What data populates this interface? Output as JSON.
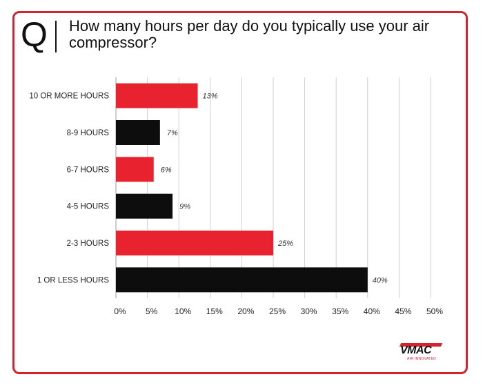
{
  "header": {
    "q_letter": "Q",
    "question": "How many hours per day do you typically use your air compressor?"
  },
  "colors": {
    "red": "#e8232f",
    "black": "#0d0d0d",
    "border": "#d6232f",
    "grid": "#cfcfcf"
  },
  "chart_data": {
    "type": "bar",
    "orientation": "horizontal",
    "title": "How many hours per day do you typically use your air compressor?",
    "xlabel": "",
    "ylabel": "",
    "categories": [
      "10 OR MORE HOURS",
      "8-9 HOURS",
      "6-7 HOURS",
      "4-5 HOURS",
      "2-3 HOURS",
      "1 OR LESS HOURS"
    ],
    "values": [
      13,
      7,
      6,
      9,
      25,
      40
    ],
    "value_labels": [
      "13%",
      "7%",
      "6%",
      "9%",
      "25%",
      "40%"
    ],
    "bar_colors": [
      "#e8232f",
      "#0d0d0d",
      "#e8232f",
      "#0d0d0d",
      "#e8232f",
      "#0d0d0d"
    ],
    "xlim": [
      0,
      50
    ],
    "x_ticks": [
      0,
      5,
      10,
      15,
      20,
      25,
      30,
      35,
      40,
      45,
      50
    ],
    "x_tick_labels": [
      "0%",
      "5%",
      "10%",
      "15%",
      "20%",
      "25%",
      "30%",
      "35%",
      "40%",
      "45%",
      "50%"
    ],
    "grid": "vertical",
    "legend": "none"
  },
  "logo": {
    "name": "VMAC",
    "tagline": "AIR INNOVATED"
  }
}
